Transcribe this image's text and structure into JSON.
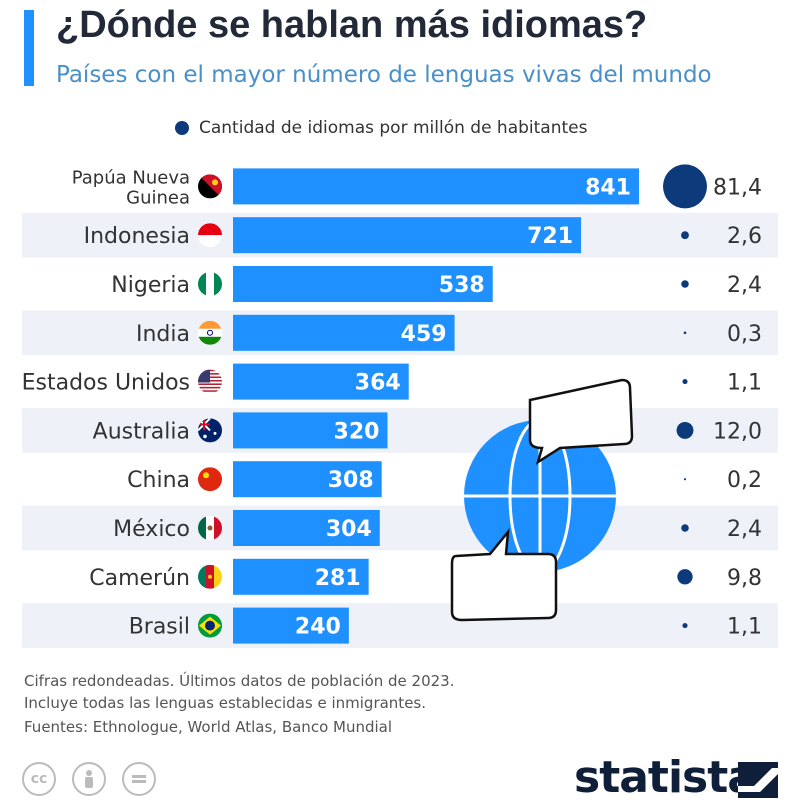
{
  "title": "¿Dónde se hablan más idiomas?",
  "subtitle": "Países con el mayor número de lenguas vivas del mundo",
  "colors": {
    "bar": "#1e90ff",
    "dot": "#0d3a7a",
    "stripe": "#eef2f8",
    "accent": "#1e90ff"
  },
  "chart_data": {
    "type": "bar",
    "orientation": "horizontal",
    "categories": [
      "Papúa Nueva Guinea",
      "Indonesia",
      "Nigeria",
      "India",
      "Estados Unidos",
      "Australia",
      "China",
      "México",
      "Camerún",
      "Brasil"
    ],
    "series": [
      {
        "values": [
          841,
          721,
          538,
          459,
          364,
          320,
          308,
          304,
          281,
          240
        ]
      },
      {
        "name": "Cantidad de idiomas por millón de habitantes",
        "values": [
          81.4,
          2.6,
          2.4,
          0.3,
          1.1,
          12.0,
          0.2,
          2.4,
          9.8,
          1.1
        ],
        "labels": [
          "81,4",
          "2,6",
          "2,4",
          "0,3",
          "1,1",
          "12,0",
          "0,2",
          "2,4",
          "9,8",
          "1,1"
        ]
      }
    ],
    "flags": [
      "flag-papua-new-guinea-icon",
      "flag-indonesia-icon",
      "flag-nigeria-icon",
      "flag-india-icon",
      "flag-usa-icon",
      "flag-australia-icon",
      "flag-china-icon",
      "flag-mexico-icon",
      "flag-cameroon-icon",
      "flag-brazil-icon"
    ],
    "legend": "top",
    "grid": false
  },
  "notes": [
    "Cifras redondeadas. Últimos datos de población de 2023.",
    "Incluye todas las lenguas establecidas e inmigrantes.",
    "Fuentes: Ethnologue, World Atlas, Banco Mundial"
  ],
  "license_icons": [
    "cc-icon",
    "attribution-icon",
    "no-derivatives-icon"
  ],
  "brand": "statista",
  "decoration": "globe-with-speech-bubbles-icon"
}
